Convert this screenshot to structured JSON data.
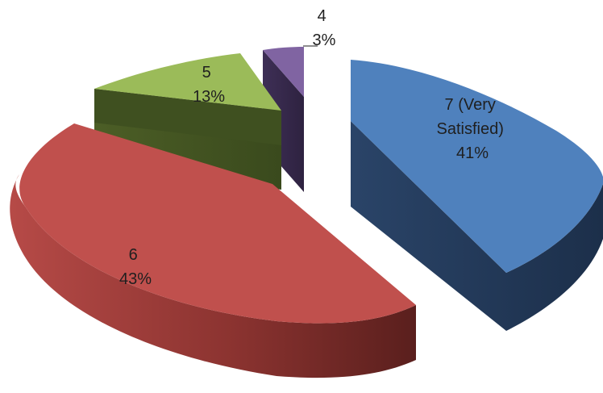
{
  "chart_data": {
    "type": "pie",
    "style": "3d-exploded",
    "title": "",
    "slices": [
      {
        "category": "7 (Very Satisfied)",
        "label_lines": [
          "7 (Very",
          "Satisfied)"
        ],
        "percent_label": "41%",
        "value": 41,
        "color": "#4F81BD"
      },
      {
        "category": "6",
        "label_lines": [
          "6"
        ],
        "percent_label": "43%",
        "value": 43,
        "color": "#C0504D"
      },
      {
        "category": "5",
        "label_lines": [
          "5"
        ],
        "percent_label": "13%",
        "value": 13,
        "color": "#9BBB59"
      },
      {
        "category": "4",
        "label_lines": [
          "4"
        ],
        "percent_label": "3%",
        "value": 3,
        "color": "#8064A2"
      }
    ],
    "legend": "none"
  }
}
